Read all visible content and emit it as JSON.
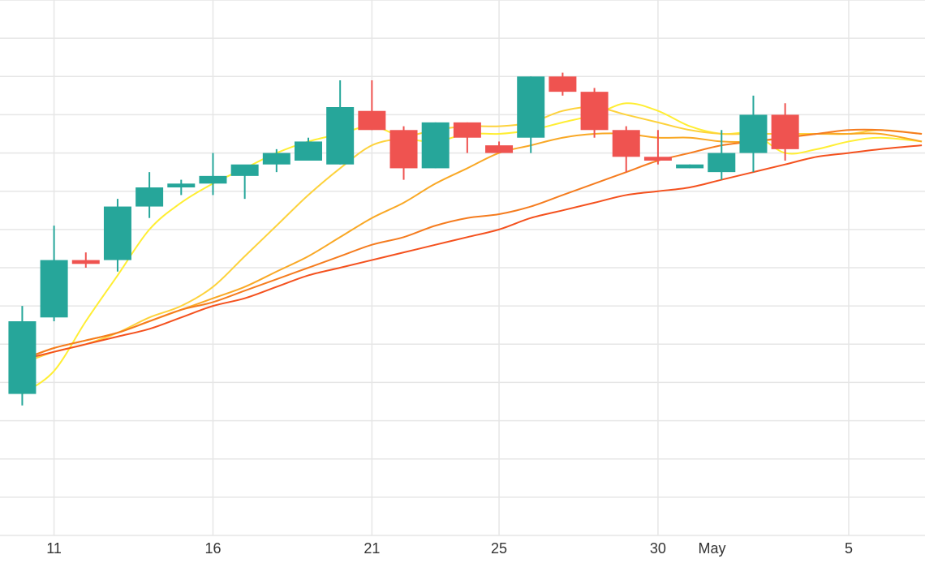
{
  "chart_data": {
    "type": "candlestick",
    "title": "",
    "xlabel": "",
    "ylabel": "",
    "x_tick_labels": [
      {
        "label": "11",
        "day": 11
      },
      {
        "label": "16",
        "day": 16
      },
      {
        "label": "21",
        "day": 21
      },
      {
        "label": "25",
        "day": 25
      },
      {
        "label": "30",
        "day": 30
      },
      {
        "label": "May",
        "day": 31.7
      },
      {
        "label": "5",
        "day": 36
      }
    ],
    "x_range": [
      9.3,
      38.4
    ],
    "y_range": [
      0,
      14
    ],
    "grid": true,
    "colors": {
      "up": "#26a69a",
      "down": "#ef5350",
      "grid": "#e6e6e6",
      "ma_lines": [
        "#ffee33",
        "#fdd23c",
        "#f9a825",
        "#f57c1f",
        "#f4511e"
      ]
    },
    "candles": [
      {
        "day": 10,
        "open": 3.7,
        "high": 6.0,
        "low": 3.4,
        "close": 5.6
      },
      {
        "day": 11,
        "open": 5.7,
        "high": 8.1,
        "low": 5.6,
        "close": 7.2
      },
      {
        "day": 12,
        "open": 7.2,
        "high": 7.4,
        "low": 7.0,
        "close": 7.1
      },
      {
        "day": 13,
        "open": 7.2,
        "high": 8.8,
        "low": 6.9,
        "close": 8.6
      },
      {
        "day": 14,
        "open": 8.6,
        "high": 9.5,
        "low": 8.3,
        "close": 9.1
      },
      {
        "day": 15,
        "open": 9.1,
        "high": 9.3,
        "low": 8.9,
        "close": 9.2
      },
      {
        "day": 16,
        "open": 9.2,
        "high": 10.0,
        "low": 8.9,
        "close": 9.4
      },
      {
        "day": 17,
        "open": 9.4,
        "high": 9.6,
        "low": 8.8,
        "close": 9.7
      },
      {
        "day": 18,
        "open": 9.7,
        "high": 10.1,
        "low": 9.5,
        "close": 10.0
      },
      {
        "day": 19,
        "open": 9.8,
        "high": 10.4,
        "low": 9.8,
        "close": 10.3
      },
      {
        "day": 20,
        "open": 9.7,
        "high": 11.9,
        "low": 9.7,
        "close": 11.2
      },
      {
        "day": 21,
        "open": 11.1,
        "high": 11.9,
        "low": 10.6,
        "close": 10.6
      },
      {
        "day": 22,
        "open": 10.6,
        "high": 10.7,
        "low": 9.3,
        "close": 9.6
      },
      {
        "day": 23,
        "open": 9.6,
        "high": 10.8,
        "low": 9.6,
        "close": 10.8
      },
      {
        "day": 24,
        "open": 10.8,
        "high": 10.8,
        "low": 10.0,
        "close": 10.4
      },
      {
        "day": 25,
        "open": 10.2,
        "high": 10.3,
        "low": 10.0,
        "close": 10.0
      },
      {
        "day": 26,
        "open": 10.4,
        "high": 12.0,
        "low": 10.0,
        "close": 12.0
      },
      {
        "day": 27,
        "open": 12.0,
        "high": 12.1,
        "low": 11.5,
        "close": 11.6
      },
      {
        "day": 28,
        "open": 11.6,
        "high": 11.7,
        "low": 10.4,
        "close": 10.6
      },
      {
        "day": 29,
        "open": 10.6,
        "high": 10.7,
        "low": 9.5,
        "close": 9.9
      },
      {
        "day": 30,
        "open": 9.9,
        "high": 10.6,
        "low": 9.7,
        "close": 9.8
      },
      {
        "day": 31,
        "open": 9.6,
        "high": 9.7,
        "low": 9.6,
        "close": 9.7
      },
      {
        "day": 32,
        "open": 9.5,
        "high": 10.6,
        "low": 9.3,
        "close": 10.0
      },
      {
        "day": 33,
        "open": 10.0,
        "high": 11.5,
        "low": 9.5,
        "close": 11.0
      },
      {
        "day": 34,
        "open": 11.0,
        "high": 11.3,
        "low": 9.8,
        "close": 10.1
      }
    ],
    "ma_series": [
      {
        "x": [
          10,
          11,
          12,
          13,
          14,
          15,
          16,
          17,
          18,
          19,
          20,
          21,
          22,
          23,
          24,
          25,
          26,
          27,
          28,
          29,
          30,
          31,
          32,
          33,
          34,
          35,
          36,
          37,
          38.3
        ],
        "y": [
          3.7,
          4.3,
          5.6,
          6.8,
          8.0,
          8.7,
          9.2,
          9.6,
          10.0,
          10.3,
          10.5,
          10.7,
          10.4,
          10.3,
          10.5,
          10.5,
          10.6,
          10.8,
          11.0,
          11.3,
          11.1,
          10.7,
          10.5,
          10.5,
          10.0,
          10.1,
          10.3,
          10.4,
          10.3
        ]
      },
      {
        "x": [
          10,
          11,
          12,
          13,
          14,
          15,
          16,
          17,
          18,
          19,
          20,
          21,
          22,
          23,
          24,
          25,
          26,
          27,
          28,
          29,
          30,
          31,
          32,
          33,
          34,
          35,
          36,
          37,
          38.3
        ],
        "y": [
          4.5,
          4.8,
          5.0,
          5.3,
          5.7,
          6.0,
          6.5,
          7.3,
          8.1,
          8.9,
          9.6,
          10.2,
          10.4,
          10.6,
          10.7,
          10.7,
          10.8,
          11.1,
          11.2,
          11.0,
          10.8,
          10.6,
          10.5,
          10.5,
          10.5,
          10.5,
          10.5,
          10.6,
          10.5
        ]
      },
      {
        "x": [
          10,
          11,
          12,
          13,
          14,
          15,
          16,
          17,
          18,
          19,
          20,
          21,
          22,
          23,
          24,
          25,
          26,
          27,
          28,
          29,
          30,
          31,
          32,
          33,
          34,
          35,
          36,
          37,
          38.3
        ],
        "y": [
          4.6,
          4.9,
          5.1,
          5.3,
          5.6,
          5.9,
          6.2,
          6.5,
          6.9,
          7.3,
          7.8,
          8.3,
          8.7,
          9.2,
          9.6,
          10.0,
          10.2,
          10.4,
          10.5,
          10.5,
          10.4,
          10.4,
          10.3,
          10.3,
          10.4,
          10.5,
          10.5,
          10.5,
          10.3
        ]
      },
      {
        "x": [
          10,
          11,
          12,
          13,
          14,
          15,
          16,
          17,
          18,
          19,
          20,
          21,
          22,
          23,
          24,
          25,
          26,
          27,
          28,
          29,
          30,
          31,
          32,
          33,
          34,
          35,
          36,
          37,
          38.3
        ],
        "y": [
          4.6,
          4.9,
          5.1,
          5.3,
          5.6,
          5.9,
          6.1,
          6.4,
          6.7,
          7.0,
          7.3,
          7.6,
          7.8,
          8.1,
          8.3,
          8.4,
          8.6,
          8.9,
          9.2,
          9.5,
          9.8,
          10.0,
          10.2,
          10.3,
          10.4,
          10.5,
          10.6,
          10.6,
          10.5
        ]
      },
      {
        "x": [
          10,
          11,
          12,
          13,
          14,
          15,
          16,
          17,
          18,
          19,
          20,
          21,
          22,
          23,
          24,
          25,
          26,
          27,
          28,
          29,
          30,
          31,
          32,
          33,
          34,
          35,
          36,
          37,
          38.3
        ],
        "y": [
          4.6,
          4.8,
          5.0,
          5.2,
          5.4,
          5.7,
          6.0,
          6.2,
          6.5,
          6.8,
          7.0,
          7.2,
          7.4,
          7.6,
          7.8,
          8.0,
          8.3,
          8.5,
          8.7,
          8.9,
          9.0,
          9.1,
          9.3,
          9.5,
          9.7,
          9.9,
          10.0,
          10.1,
          10.2
        ]
      }
    ]
  }
}
